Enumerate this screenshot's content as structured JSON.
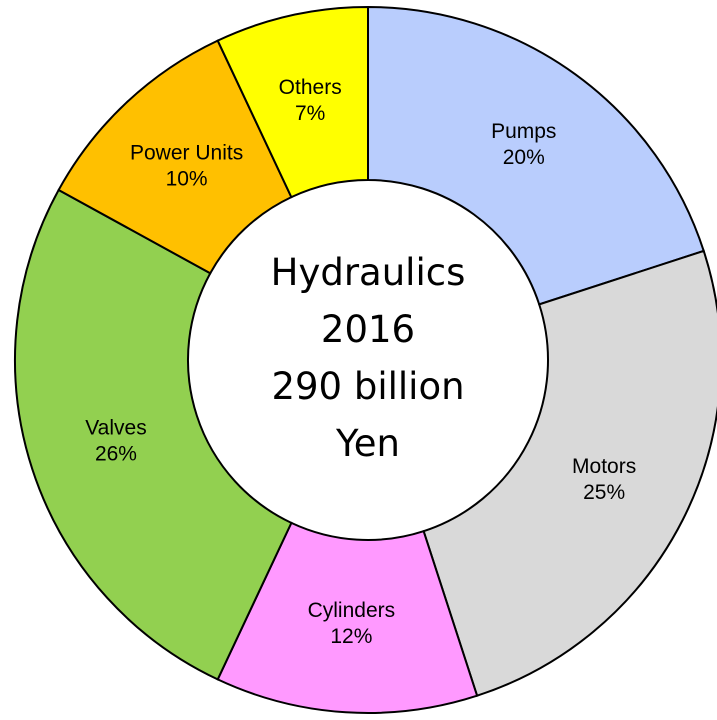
{
  "chart_data": {
    "type": "donut",
    "categories": [
      "Pumps",
      "Motors",
      "Cylinders",
      "Valves",
      "Power Units",
      "Others"
    ],
    "values": [
      20,
      25,
      12,
      26,
      10,
      7
    ],
    "value_labels": [
      "20%",
      "25%",
      "12%",
      "26%",
      "10%",
      "7%"
    ],
    "colors": [
      "#b9cdfd",
      "#d9d9d9",
      "#ff99ff",
      "#92d050",
      "#ffc000",
      "#ffff00"
    ],
    "center_label": [
      "Hydraulics",
      "2016",
      "290 billion",
      "Yen"
    ]
  }
}
